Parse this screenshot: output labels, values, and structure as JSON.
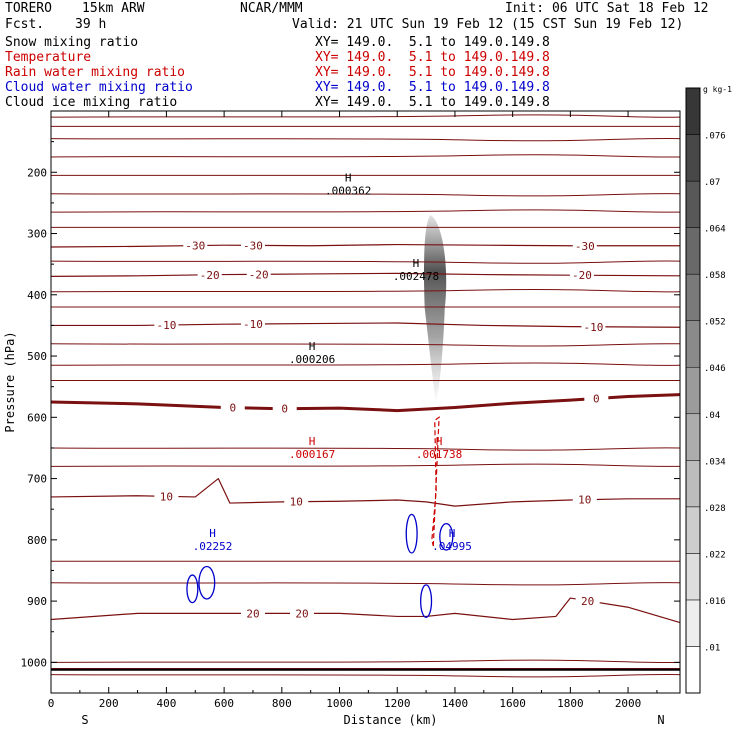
{
  "header": {
    "run_name": "TORERO",
    "model": "15km ARW",
    "org": "NCAR/MMM",
    "init": "Init: 06 UTC Sat 18 Feb 12",
    "fcst_label": "Fcst.",
    "fcst_value": "39 h",
    "valid": "Valid: 21 UTC Sun 19 Feb 12 (15 CST Sun 19 Feb 12)"
  },
  "fields": [
    {
      "name": "Snow mixing ratio",
      "xy": "XY= 149.0.  5.1 to 149.0.149.8",
      "color": "#000000",
      "xy_color": "#000000"
    },
    {
      "name": "Temperature",
      "xy": "XY= 149.0.  5.1 to 149.0.149.8",
      "color": "#cc0000",
      "xy_color": "#cc0000"
    },
    {
      "name": "Rain water mixing ratio",
      "xy": "XY= 149.0.  5.1 to 149.0.149.8",
      "color": "#cc0000",
      "xy_color": "#cc0000"
    },
    {
      "name": "Cloud water mixing ratio",
      "xy": "XY= 149.0.  5.1 to 149.0.149.8",
      "color": "#0000cc",
      "xy_color": "#0000cc"
    },
    {
      "name": "Cloud ice mixing ratio",
      "xy": "XY= 149.0.  5.1 to 149.0.149.8",
      "color": "#000000",
      "xy_color": "#000000"
    }
  ],
  "chart_data": {
    "type": "cross-section",
    "xlabel": "Distance (km)",
    "ylabel": "Pressure (hPa)",
    "xlim": [
      0,
      2180
    ],
    "ylim": [
      1050,
      100
    ],
    "x_ticks": [
      0,
      200,
      400,
      600,
      800,
      1000,
      1200,
      1400,
      1600,
      1800,
      2000
    ],
    "y_ticks": [
      200,
      300,
      400,
      500,
      600,
      700,
      800,
      900,
      1000
    ],
    "x_end_labels": {
      "left": "S",
      "right": "N"
    },
    "colorbar": {
      "unit": "g kg-1",
      "levels": [
        ".01",
        ".016",
        ".022",
        ".028",
        ".034",
        ".04",
        ".046",
        ".052",
        ".058",
        ".064",
        ".07",
        ".076"
      ]
    },
    "isotherms": [
      {
        "value": "-30",
        "x": [
          0,
          300,
          600,
          900,
          1200,
          1500,
          1800,
          2180
        ],
        "p": [
          322,
          321,
          319,
          320,
          318,
          319,
          320,
          320
        ],
        "labels_x": [
          500,
          700,
          1850
        ]
      },
      {
        "value": "-20",
        "x": [
          0,
          300,
          600,
          900,
          1200,
          1500,
          1800,
          2180
        ],
        "p": [
          370,
          369,
          367,
          366,
          365,
          367,
          368,
          369
        ],
        "labels_x": [
          550,
          720,
          1840
        ]
      },
      {
        "value": "-10",
        "x": [
          0,
          300,
          600,
          900,
          1200,
          1500,
          1800,
          2180
        ],
        "p": [
          450,
          450,
          448,
          447,
          446,
          450,
          452,
          453
        ],
        "labels_x": [
          400,
          700,
          1880
        ]
      },
      {
        "value": "0",
        "x": [
          0,
          300,
          600,
          800,
          1000,
          1200,
          1400,
          1600,
          1800,
          2000,
          2180
        ],
        "p": [
          575,
          578,
          584,
          586,
          585,
          589,
          584,
          577,
          572,
          566,
          563
        ],
        "labels_x": [
          630,
          810,
          1890
        ],
        "bold": true
      },
      {
        "value": "10",
        "x": [
          0,
          300,
          500,
          580,
          620,
          800,
          1000,
          1200,
          1300,
          1400,
          1600,
          1800,
          2000,
          2180
        ],
        "p": [
          730,
          728,
          730,
          700,
          740,
          738,
          737,
          735,
          738,
          745,
          738,
          735,
          733,
          733
        ],
        "labels_x": [
          400,
          850,
          1850
        ]
      },
      {
        "value": "20",
        "x": [
          0,
          300,
          500,
          700,
          1000,
          1200,
          1300,
          1400,
          1600,
          1750,
          1800,
          2000,
          2180
        ],
        "p": [
          930,
          920,
          920,
          920,
          920,
          925,
          925,
          920,
          930,
          925,
          895,
          910,
          935
        ],
        "labels_x": [
          700,
          870,
          1860
        ]
      }
    ],
    "unlabeled_isolines_p": [
      110,
      125,
      145,
      175,
      205,
      235,
      265,
      290,
      345,
      395,
      420,
      480,
      515,
      540,
      650,
      680,
      835,
      870,
      1000,
      1010,
      1020
    ],
    "extrema": [
      {
        "label": "H",
        "value": ".000362",
        "x": 1030,
        "p": 215,
        "color": "#000000"
      },
      {
        "label": "H",
        "value": ".002478",
        "x": 1265,
        "p": 355,
        "color": "#000000"
      },
      {
        "label": "H",
        "value": ".000206",
        "x": 905,
        "p": 490,
        "color": "#000000"
      },
      {
        "label": "H",
        "value": ".000167",
        "x": 905,
        "p": 645,
        "color": "#cc0000"
      },
      {
        "label": "H",
        "value": ".001738",
        "x": 1345,
        "p": 645,
        "color": "#cc0000"
      },
      {
        "label": "H",
        "value": ".02252",
        "x": 560,
        "p": 795,
        "color": "#0000cc"
      },
      {
        "label": "H",
        "value": ".04995",
        "x": 1390,
        "p": 795,
        "color": "#0000cc"
      }
    ],
    "snow_region": {
      "x_center": 1330,
      "p_top": 270,
      "p_bottom": 575,
      "max_level": ".076"
    },
    "rain_contour": {
      "x": [
        1325,
        1345,
        1330,
        1335,
        1320,
        1325
      ],
      "p": [
        810,
        600,
        605,
        720,
        800,
        810
      ]
    },
    "cloud_water_contours": [
      {
        "x_center": 540,
        "p_center": 870,
        "dx": 28,
        "dp": 20
      },
      {
        "x_center": 490,
        "p_center": 880,
        "dx": 14,
        "dp": 16
      },
      {
        "x_center": 1250,
        "p_center": 790,
        "dx": 14,
        "dp": 25
      },
      {
        "x_center": 1300,
        "p_center": 900,
        "dx": 14,
        "dp": 20
      },
      {
        "x_center": 1370,
        "p_center": 795,
        "dx": 20,
        "dp": 15
      }
    ]
  }
}
